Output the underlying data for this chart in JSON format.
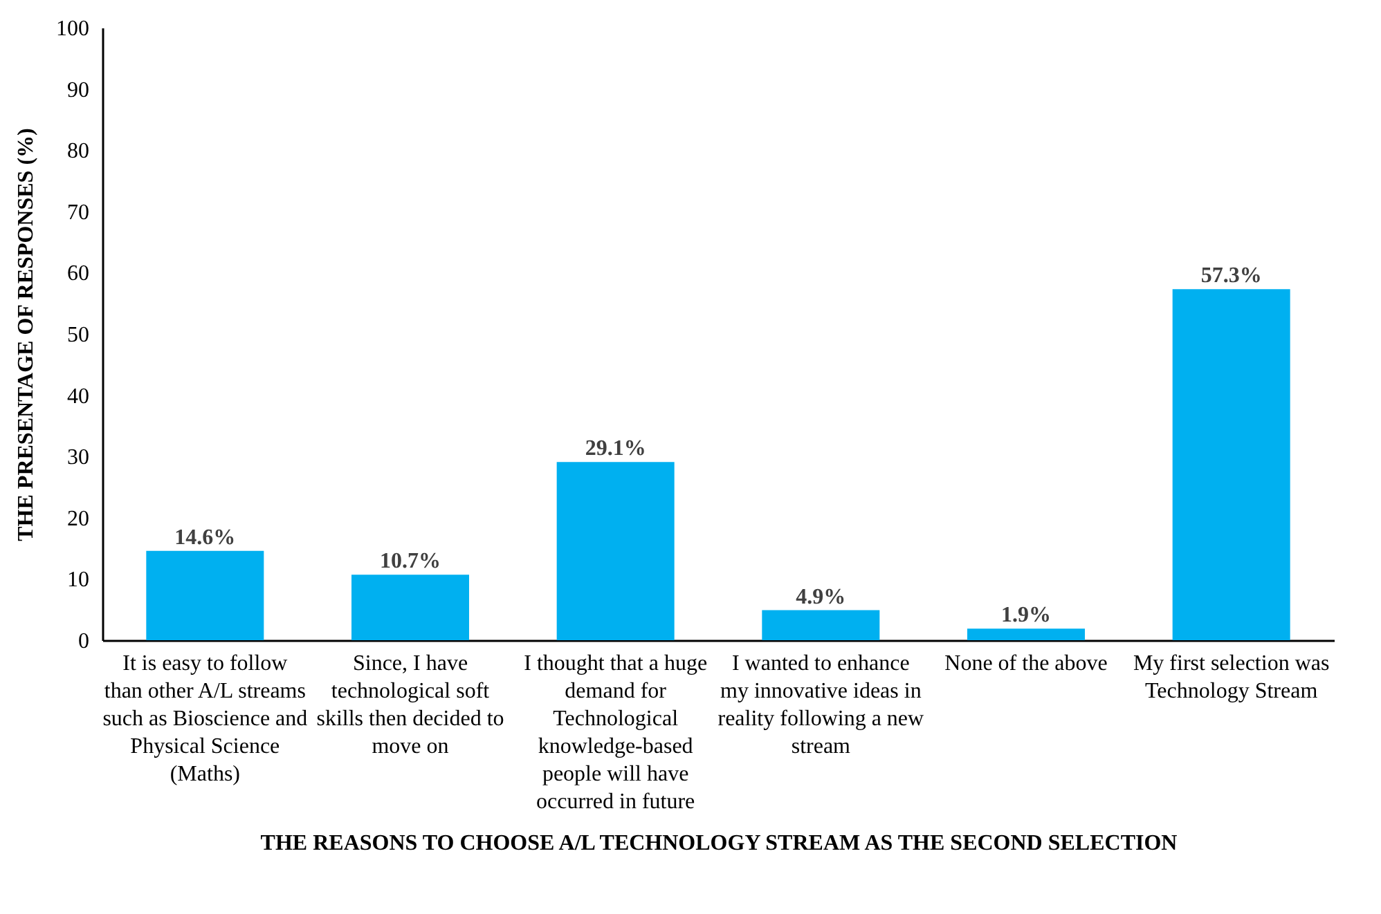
{
  "chart_data": {
    "type": "bar",
    "xlabel": "THE REASONS TO CHOOSE A/L TECHNOLOGY STREAM AS THE SECOND SELECTION",
    "ylabel": "THE PRESENTAGE OF RESPONSES (%)",
    "categories": [
      "It is easy to follow than other A/L streams such as Bioscience and Physical Science (Maths)",
      "Since, I have technological soft skills then decided to move on",
      "I thought that a huge demand for Technological knowledge-based people will have occurred in future",
      "I wanted to enhance my innovative ideas in reality following a new stream",
      "None of the above",
      "My first selection was Technology Stream"
    ],
    "values": [
      14.6,
      10.7,
      29.1,
      4.9,
      1.9,
      57.3
    ],
    "value_labels": [
      "14.6%",
      "10.7%",
      "29.1%",
      "4.9%",
      "1.9%",
      "57.3%"
    ],
    "color": "#00b0f0",
    "ylim": [
      0,
      100
    ],
    "yticks": [
      0,
      10,
      20,
      30,
      40,
      50,
      60,
      70,
      80,
      90,
      100
    ],
    "grid": false
  }
}
